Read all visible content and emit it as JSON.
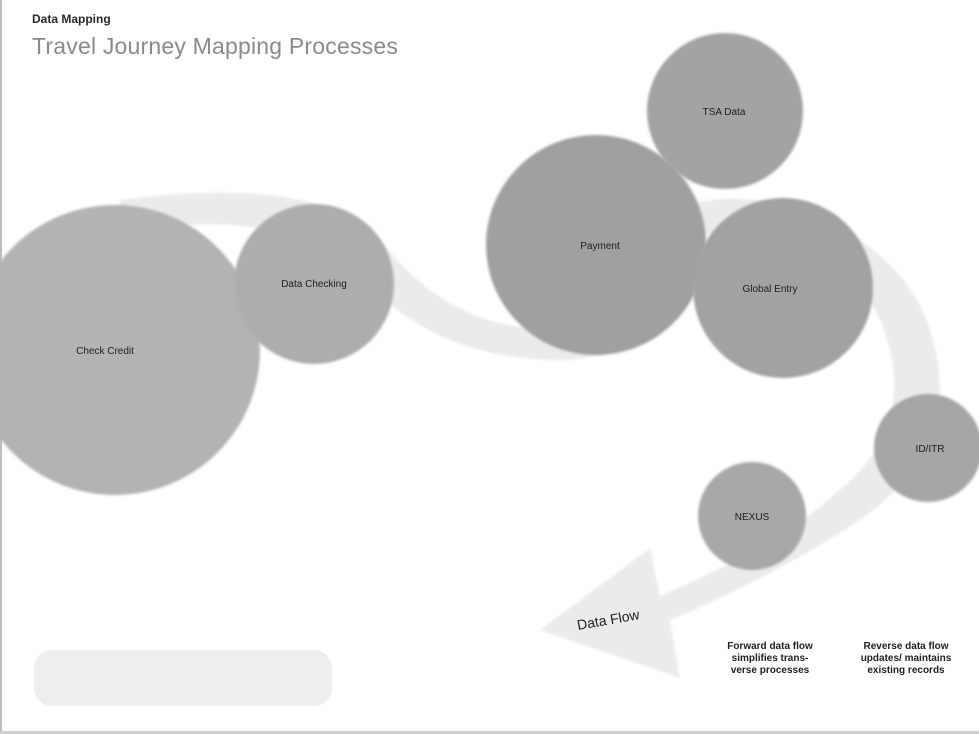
{
  "header": {
    "kicker": "Data Mapping",
    "title": "Travel Journey Mapping Processes"
  },
  "nodes": [
    {
      "id": "n1",
      "label": "Check Credit"
    },
    {
      "id": "n2",
      "label": "Data Checking"
    },
    {
      "id": "n3",
      "label": "Payment"
    },
    {
      "id": "n4",
      "label": "TSA Data"
    },
    {
      "id": "n5",
      "label": "Global Entry"
    },
    {
      "id": "n6",
      "label": "ID/ITR"
    },
    {
      "id": "n7",
      "label": "NEXUS"
    }
  ],
  "flow": {
    "label": "Data Flow"
  },
  "legend": {
    "forward": "Forward data flow simplifies trans­verse processes",
    "reverse": "Reverse data flow updates/ maintains existing records"
  },
  "filters": [
    "",
    "",
    "",
    ""
  ],
  "colors": {
    "node_fill": "#a0a0a0",
    "node_fill_light": "#b8b8b8",
    "flow_fill": "#e9e9e9",
    "background": "#ffffff"
  }
}
